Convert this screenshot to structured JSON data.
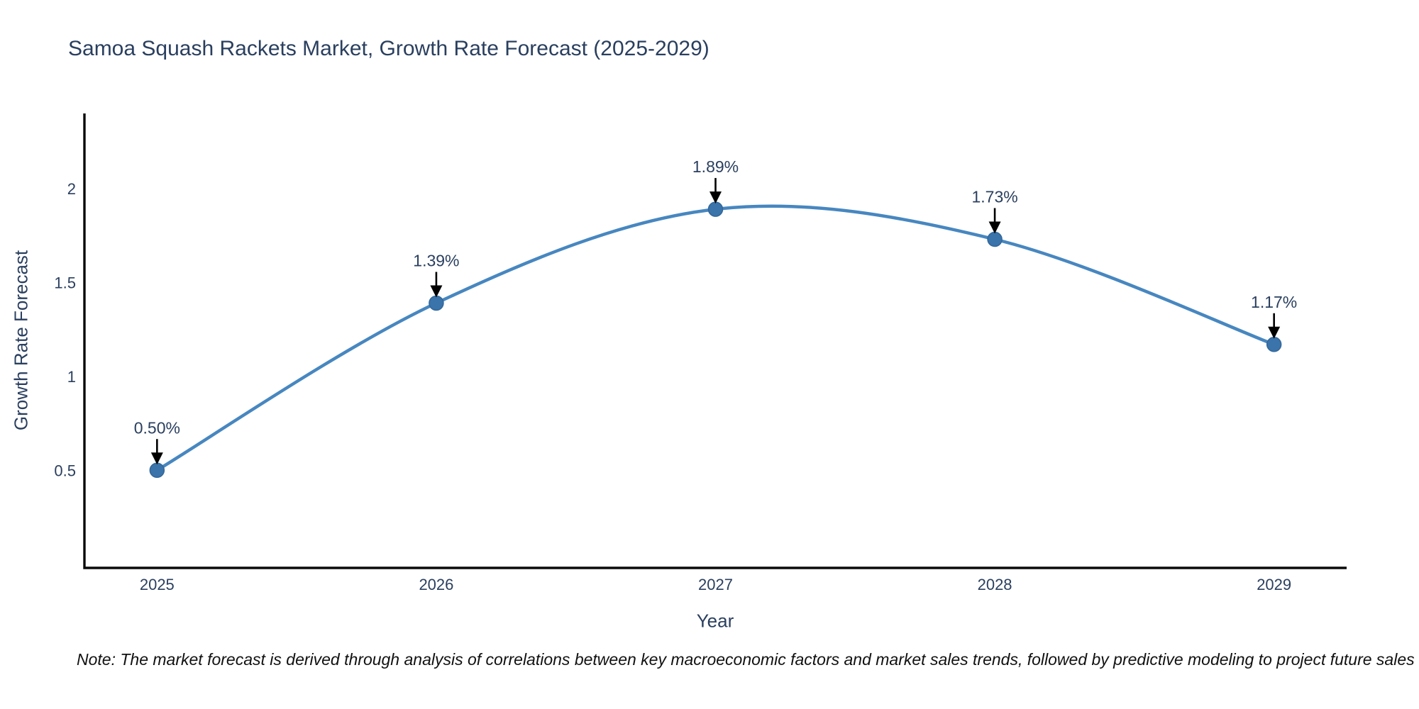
{
  "figure": {
    "title": "Samoa Squash Rackets Market, Growth Rate Forecast (2025-2029)",
    "note": "Note: The market forecast is derived through analysis of correlations between key macroeconomic factors and market sales trends, followed by predictive modeling to project future sales"
  },
  "chart_data": {
    "type": "line",
    "title": "Samoa Squash Rackets Market, Growth Rate Forecast (2025-2029)",
    "xlabel": "Year",
    "ylabel": "Growth Rate Forecast",
    "x": [
      2025,
      2026,
      2027,
      2028,
      2029
    ],
    "y": [
      0.5,
      1.39,
      1.89,
      1.73,
      1.17
    ],
    "point_labels": [
      "0.50%",
      "1.39%",
      "1.89%",
      "1.73%",
      "1.17%"
    ],
    "x_tick_labels": [
      "2025",
      "2026",
      "2027",
      "2028",
      "2029"
    ],
    "y_ticks": [
      0.5,
      1,
      1.5,
      2
    ],
    "y_tick_labels": [
      "0.5",
      "1",
      "1.5",
      "2"
    ],
    "xlim": [
      2024.74,
      2029.26
    ],
    "ylim": [
      -0.02,
      2.4
    ],
    "line_shape": "spline",
    "grid": false,
    "legend": "none",
    "colors": {
      "line": "#4787c0",
      "marker_fill": "#3a74ab",
      "marker_edge": "#33679a",
      "axis_line": "#0a0a0a",
      "tick_text": "#2a3f5f",
      "annotation_text": "#2a3f5f",
      "annotation_arrow": "#000000",
      "background": "#ffffff"
    }
  }
}
